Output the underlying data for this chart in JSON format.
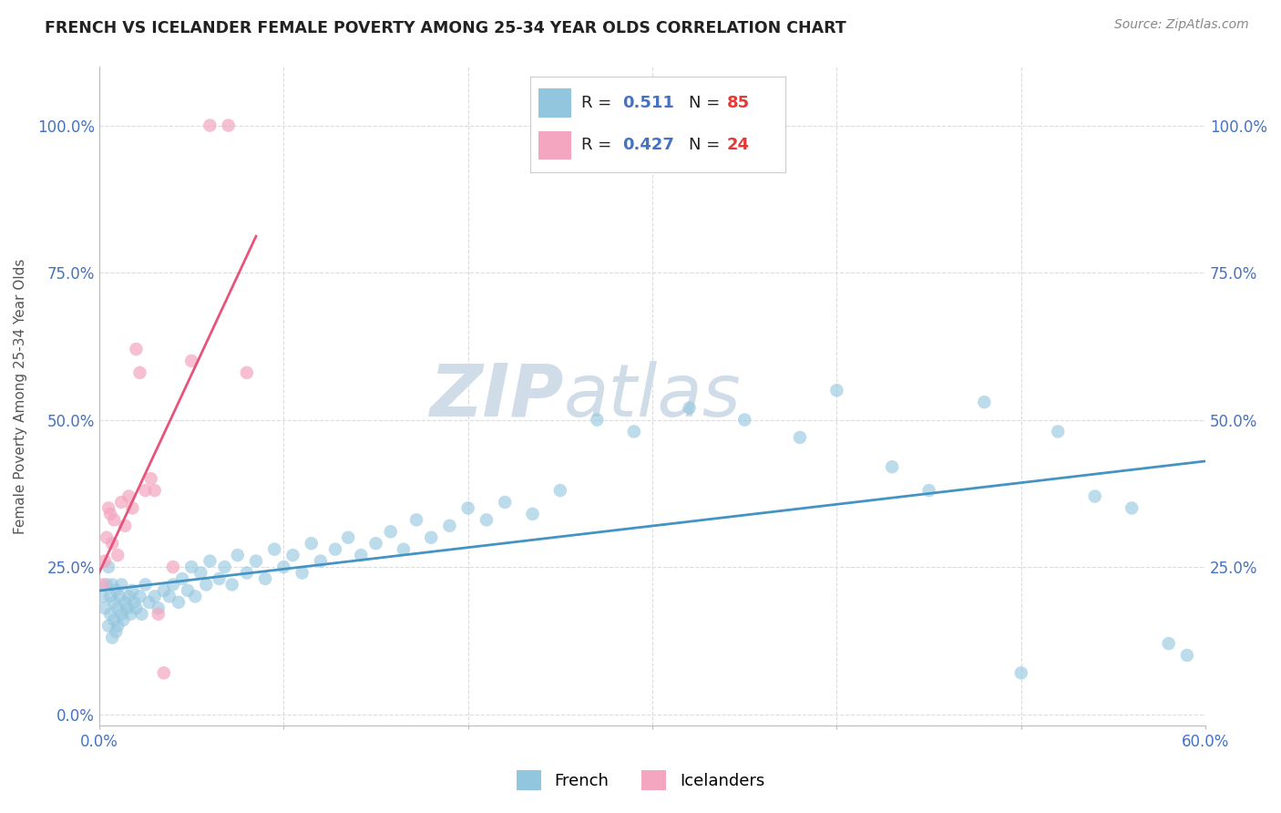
{
  "title": "FRENCH VS ICELANDER FEMALE POVERTY AMONG 25-34 YEAR OLDS CORRELATION CHART",
  "source": "Source: ZipAtlas.com",
  "ylabel": "Female Poverty Among 25-34 Year Olds",
  "xlim": [
    0.0,
    0.6
  ],
  "ylim": [
    -0.02,
    1.1
  ],
  "french_R": 0.511,
  "french_N": 85,
  "icelander_R": 0.427,
  "icelander_N": 24,
  "french_color": "#92c5de",
  "icelander_color": "#f4a6c0",
  "french_line_color": "#4393c3",
  "icelander_line_color": "#e8537a",
  "background_color": "#ffffff",
  "grid_color": "#d9d9d9",
  "watermark_color": "#d0dce8",
  "french_x": [
    0.002,
    0.003,
    0.004,
    0.005,
    0.005,
    0.006,
    0.006,
    0.007,
    0.007,
    0.008,
    0.008,
    0.009,
    0.009,
    0.01,
    0.01,
    0.011,
    0.012,
    0.012,
    0.013,
    0.014,
    0.015,
    0.016,
    0.017,
    0.018,
    0.019,
    0.02,
    0.022,
    0.023,
    0.025,
    0.027,
    0.03,
    0.032,
    0.035,
    0.038,
    0.04,
    0.043,
    0.045,
    0.048,
    0.05,
    0.052,
    0.055,
    0.058,
    0.06,
    0.065,
    0.068,
    0.072,
    0.075,
    0.08,
    0.085,
    0.09,
    0.095,
    0.1,
    0.105,
    0.11,
    0.115,
    0.12,
    0.128,
    0.135,
    0.142,
    0.15,
    0.158,
    0.165,
    0.172,
    0.18,
    0.19,
    0.2,
    0.21,
    0.22,
    0.235,
    0.25,
    0.27,
    0.29,
    0.32,
    0.35,
    0.38,
    0.4,
    0.43,
    0.45,
    0.48,
    0.5,
    0.52,
    0.54,
    0.56,
    0.58,
    0.59
  ],
  "french_y": [
    0.2,
    0.18,
    0.22,
    0.15,
    0.25,
    0.17,
    0.2,
    0.13,
    0.22,
    0.16,
    0.19,
    0.14,
    0.21,
    0.15,
    0.18,
    0.2,
    0.17,
    0.22,
    0.16,
    0.19,
    0.18,
    0.2,
    0.17,
    0.21,
    0.19,
    0.18,
    0.2,
    0.17,
    0.22,
    0.19,
    0.2,
    0.18,
    0.21,
    0.2,
    0.22,
    0.19,
    0.23,
    0.21,
    0.25,
    0.2,
    0.24,
    0.22,
    0.26,
    0.23,
    0.25,
    0.22,
    0.27,
    0.24,
    0.26,
    0.23,
    0.28,
    0.25,
    0.27,
    0.24,
    0.29,
    0.26,
    0.28,
    0.3,
    0.27,
    0.29,
    0.31,
    0.28,
    0.33,
    0.3,
    0.32,
    0.35,
    0.33,
    0.36,
    0.34,
    0.38,
    0.5,
    0.48,
    0.52,
    0.5,
    0.47,
    0.55,
    0.42,
    0.38,
    0.53,
    0.07,
    0.48,
    0.37,
    0.35,
    0.12,
    0.1
  ],
  "icelander_x": [
    0.002,
    0.003,
    0.004,
    0.005,
    0.006,
    0.007,
    0.008,
    0.01,
    0.012,
    0.014,
    0.016,
    0.018,
    0.02,
    0.022,
    0.025,
    0.028,
    0.03,
    0.032,
    0.035,
    0.04,
    0.05,
    0.06,
    0.07,
    0.08
  ],
  "icelander_y": [
    0.22,
    0.26,
    0.3,
    0.35,
    0.34,
    0.29,
    0.33,
    0.27,
    0.36,
    0.32,
    0.37,
    0.35,
    0.62,
    0.58,
    0.38,
    0.4,
    0.38,
    0.17,
    0.07,
    0.25,
    0.6,
    1.0,
    1.0,
    0.58
  ]
}
